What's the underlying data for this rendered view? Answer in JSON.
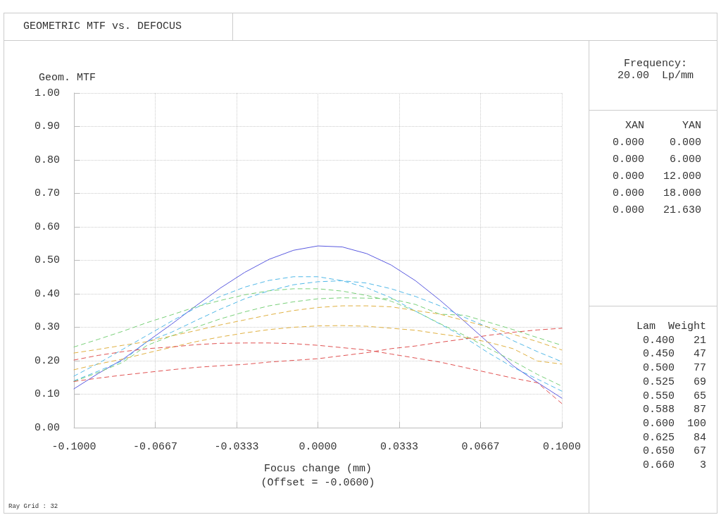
{
  "chart_data": {
    "type": "line",
    "title": "GEOMETRIC MTF vs. DEFOCUS",
    "xlabel": "Focus change (mm)\n(Offset = -0.0600)",
    "ylabel": "Geom. MTF",
    "x": [
      -0.1,
      -0.09,
      -0.08,
      -0.07,
      -0.06,
      -0.05,
      -0.04,
      -0.03,
      -0.02,
      -0.01,
      0,
      0.01,
      0.02,
      0.03,
      0.04,
      0.05,
      0.06,
      0.07,
      0.08,
      0.09,
      0.1
    ],
    "xlim": [
      -0.1,
      0.1
    ],
    "xticks": [
      {
        "value": -0.1,
        "label": "-0.1000"
      },
      {
        "value": -0.06667,
        "label": "-0.0667"
      },
      {
        "value": -0.03333,
        "label": "-0.0333"
      },
      {
        "value": 0,
        "label": "0.0000"
      },
      {
        "value": 0.03333,
        "label": "0.0333"
      },
      {
        "value": 0.06667,
        "label": "0.0667"
      },
      {
        "value": 0.1,
        "label": "0.1000"
      }
    ],
    "ylim": [
      0,
      1
    ],
    "yticks": [
      {
        "value": 0,
        "label": "0.00"
      },
      {
        "value": 0.1,
        "label": "0.10"
      },
      {
        "value": 0.2,
        "label": "0.20"
      },
      {
        "value": 0.3,
        "label": "0.30"
      },
      {
        "value": 0.4,
        "label": "0.40"
      },
      {
        "value": 0.5,
        "label": "0.50"
      },
      {
        "value": 0.6,
        "label": "0.60"
      },
      {
        "value": 0.7,
        "label": "0.70"
      },
      {
        "value": 0.8,
        "label": "0.80"
      },
      {
        "value": 0.9,
        "label": "0.90"
      },
      {
        "value": 1,
        "label": "1.00"
      }
    ],
    "grid": true,
    "marker": "none",
    "series": [
      {
        "color": "#5a5ae0",
        "line_style": "solid",
        "values": [
          0.116,
          0.162,
          0.204,
          0.257,
          0.309,
          0.364,
          0.417,
          0.464,
          0.503,
          0.53,
          0.543,
          0.54,
          0.52,
          0.486,
          0.439,
          0.381,
          0.318,
          0.253,
          0.185,
          0.135,
          0.088
        ]
      },
      {
        "color": "#50b8e8",
        "line_style": "dashed",
        "values": [
          0.14,
          0.169,
          0.2,
          0.257,
          0.285,
          0.32,
          0.354,
          0.385,
          0.409,
          0.427,
          0.436,
          0.439,
          0.432,
          0.415,
          0.392,
          0.364,
          0.33,
          0.299,
          0.26,
          0.227,
          0.197
        ]
      },
      {
        "color": "#50b8e8",
        "line_style": "dashed",
        "values": [
          0.154,
          0.192,
          0.234,
          0.276,
          0.318,
          0.358,
          0.392,
          0.42,
          0.44,
          0.451,
          0.451,
          0.439,
          0.418,
          0.388,
          0.348,
          0.31,
          0.27,
          0.223,
          0.18,
          0.145,
          0.109
        ]
      },
      {
        "color": "#78d078",
        "line_style": "dashed",
        "values": [
          0.138,
          0.165,
          0.195,
          0.246,
          0.274,
          0.3,
          0.325,
          0.346,
          0.364,
          0.376,
          0.385,
          0.388,
          0.387,
          0.385,
          0.368,
          0.339,
          0.336,
          0.315,
          0.293,
          0.269,
          0.246
        ]
      },
      {
        "color": "#78d078",
        "line_style": "dashed",
        "values": [
          0.241,
          0.264,
          0.288,
          0.314,
          0.337,
          0.361,
          0.38,
          0.397,
          0.409,
          0.415,
          0.415,
          0.408,
          0.395,
          0.378,
          0.348,
          0.311,
          0.276,
          0.237,
          0.199,
          0.159,
          0.124
        ]
      },
      {
        "color": "#e0b040",
        "line_style": "dashed",
        "values": [
          0.173,
          0.19,
          0.205,
          0.223,
          0.24,
          0.257,
          0.271,
          0.283,
          0.293,
          0.3,
          0.304,
          0.305,
          0.303,
          0.297,
          0.291,
          0.28,
          0.27,
          0.255,
          0.236,
          0.199,
          0.19
        ]
      },
      {
        "color": "#e0b040",
        "line_style": "dashed",
        "values": [
          0.223,
          0.234,
          0.246,
          0.257,
          0.274,
          0.29,
          0.307,
          0.322,
          0.337,
          0.35,
          0.359,
          0.364,
          0.364,
          0.361,
          0.35,
          0.339,
          0.32,
          0.3,
          0.279,
          0.257,
          0.232
        ]
      },
      {
        "color": "#e05050",
        "line_style": "dashed",
        "values": [
          0.202,
          0.216,
          0.227,
          0.236,
          0.241,
          0.248,
          0.252,
          0.253,
          0.253,
          0.251,
          0.246,
          0.239,
          0.232,
          0.22,
          0.208,
          0.196,
          0.18,
          0.164,
          0.148,
          0.134,
          0.072
        ]
      },
      {
        "color": "#e05050",
        "line_style": "dashed",
        "values": [
          0.138,
          0.148,
          0.157,
          0.165,
          0.173,
          0.18,
          0.185,
          0.189,
          0.196,
          0.201,
          0.206,
          0.215,
          0.224,
          0.236,
          0.244,
          0.255,
          0.265,
          0.276,
          0.285,
          0.292,
          0.297
        ]
      }
    ],
    "annotations": [
      "Frequency:",
      "20.00  Lp/mm",
      "XAN      YAN",
      "0.000    0.000",
      "0.000    6.000",
      "0.000   12.000",
      "0.000   18.000",
      "0.000   21.630",
      "Lam  Weight",
      "0.400   21",
      "0.450   47",
      "0.500   77",
      "0.525   69",
      "0.550   65",
      "0.588   87",
      "0.600  100",
      "0.625   84",
      "0.650   67",
      "0.660    3",
      "Ray Grid : 32"
    ]
  }
}
